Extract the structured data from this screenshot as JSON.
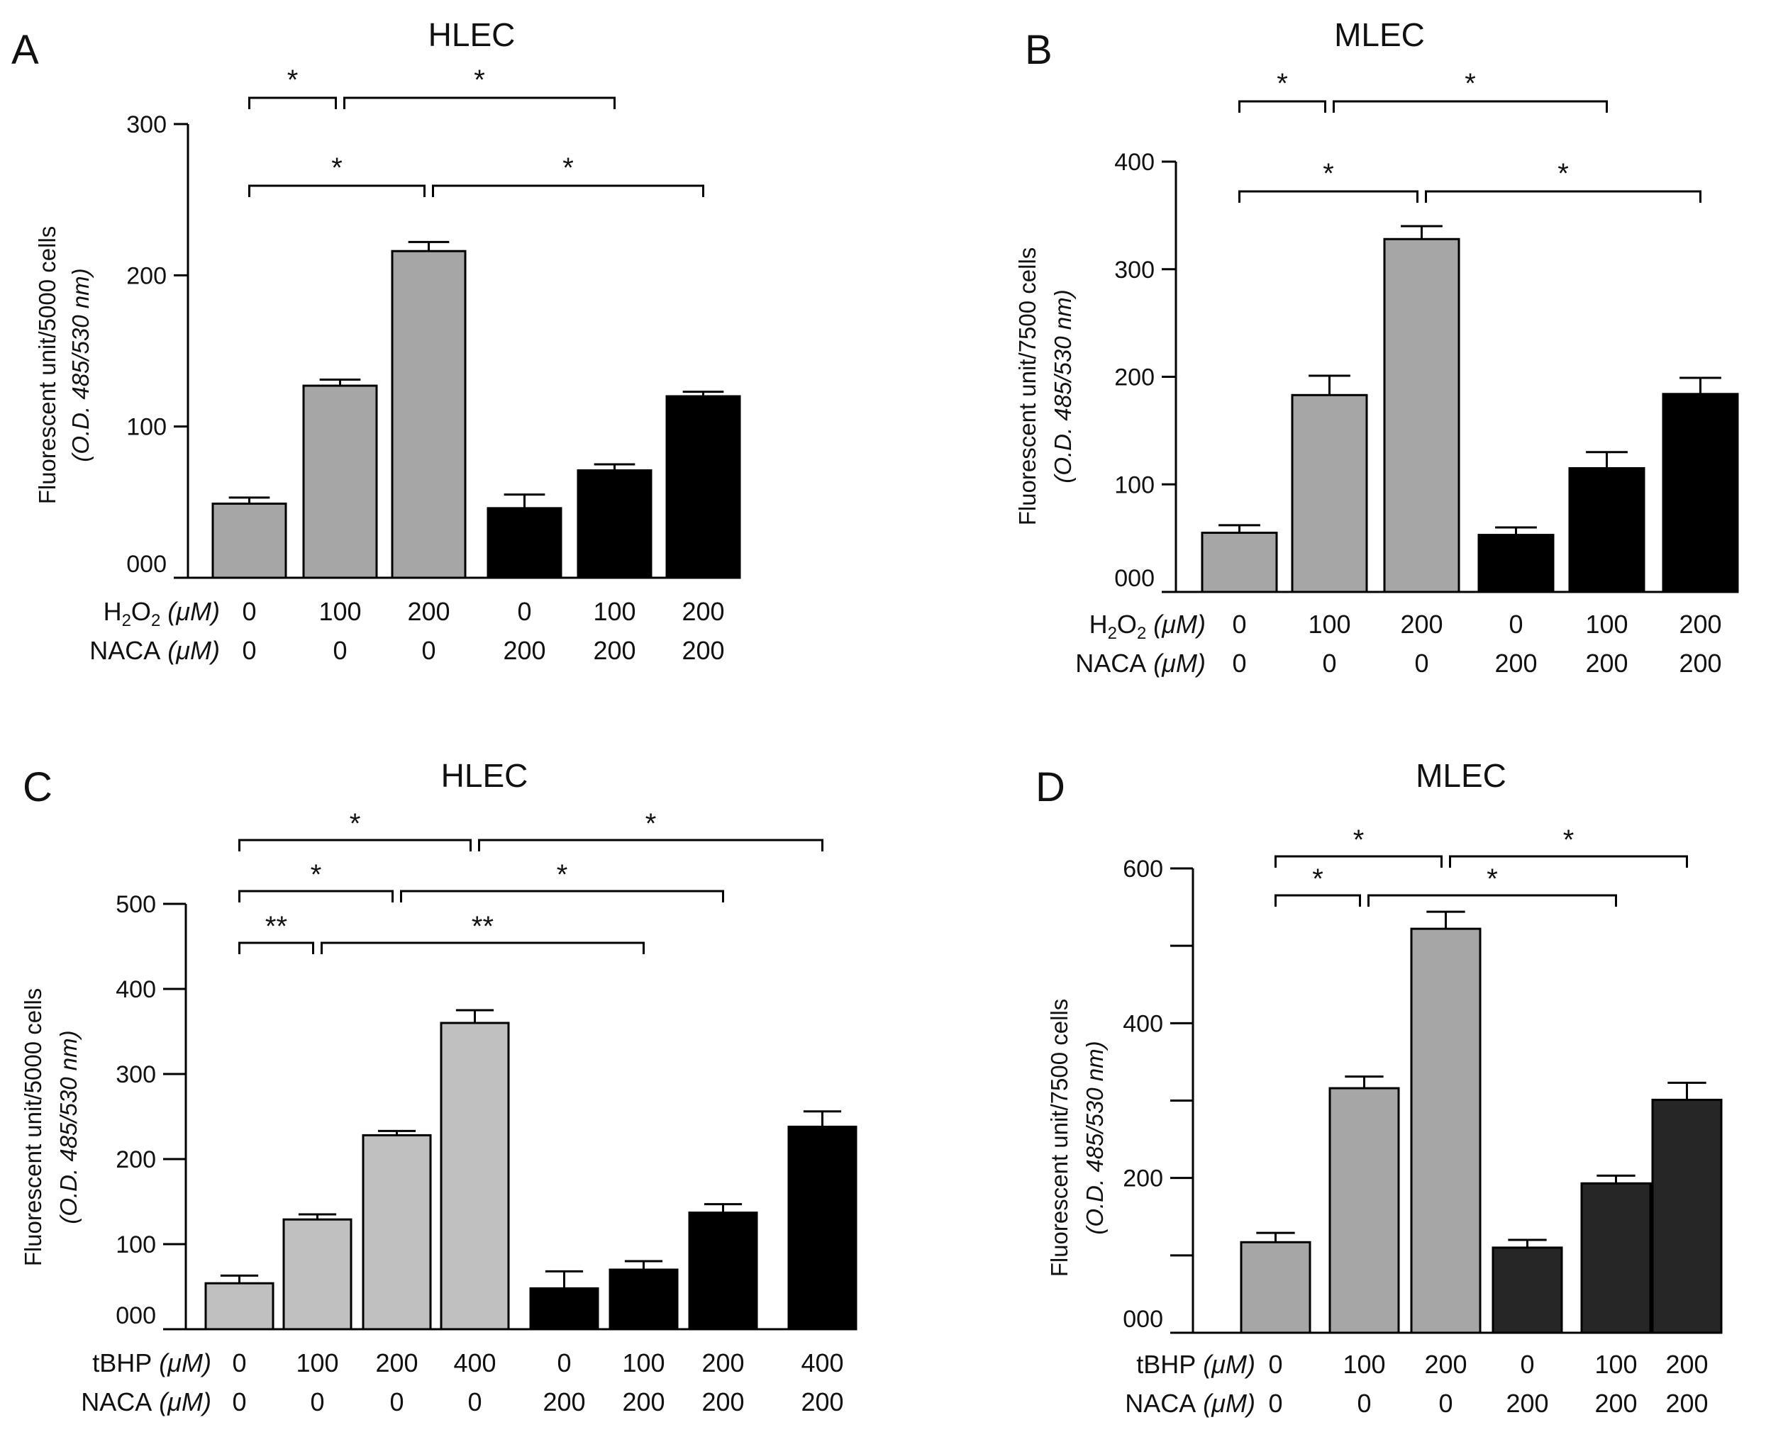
{
  "chart_data": [
    {
      "type": "bar",
      "panel_label": "A",
      "title": "HLEC",
      "ylabel": "Fluorescent unit/5000 cells",
      "ylabel_sub": "(O.D. 485/530 nm)",
      "ylim": [
        0,
        300
      ],
      "yticks": [
        0,
        100,
        200,
        300
      ],
      "ytick_labels": [
        "000",
        "100",
        "200",
        "300"
      ],
      "row_labels": [
        {
          "text": "H",
          "sub": "2",
          "text2": "O",
          "sub2": "2",
          "unit": " (μM)"
        },
        {
          "text": "NACA",
          "unit": " (μM)"
        }
      ],
      "categories_row1": [
        "0",
        "100",
        "200",
        "0",
        "100",
        "200"
      ],
      "categories_row2": [
        "0",
        "0",
        "0",
        "200",
        "200",
        "200"
      ],
      "values": [
        49,
        127,
        216,
        46,
        71,
        120
      ],
      "errors": [
        4,
        4,
        6,
        9,
        4,
        3
      ],
      "bar_colors": [
        "#a6a6a6",
        "#a6a6a6",
        "#a6a6a6",
        "#000000",
        "#000000",
        "#000000"
      ],
      "significance": [
        {
          "from": 0,
          "to": 1,
          "label": "*",
          "level": 1
        },
        {
          "from": 1,
          "to": 4,
          "label": "*",
          "level": 1
        },
        {
          "from": 0,
          "to": 2,
          "label": "*",
          "level": 2
        },
        {
          "from": 2,
          "to": 5,
          "label": "*",
          "level": 2
        }
      ]
    },
    {
      "type": "bar",
      "panel_label": "B",
      "title": "MLEC",
      "ylabel": "Fluorescent unit/7500 cells",
      "ylabel_sub": "(O.D. 485/530 nm)",
      "ylim": [
        0,
        400
      ],
      "yticks": [
        0,
        100,
        200,
        300,
        400
      ],
      "ytick_labels": [
        "000",
        "100",
        "200",
        "300",
        "400"
      ],
      "row_labels": [
        {
          "text": "H",
          "sub": "2",
          "text2": "O",
          "sub2": "2",
          "unit": " (μM)"
        },
        {
          "text": "NACA",
          "unit": " (μM)"
        }
      ],
      "categories_row1": [
        "0",
        "100",
        "200",
        "0",
        "100",
        "200"
      ],
      "categories_row2": [
        "0",
        "0",
        "0",
        "200",
        "200",
        "200"
      ],
      "values": [
        55,
        183,
        328,
        53,
        115,
        184
      ],
      "errors": [
        7,
        18,
        12,
        7,
        15,
        15
      ],
      "bar_colors": [
        "#a6a6a6",
        "#a6a6a6",
        "#a6a6a6",
        "#000000",
        "#000000",
        "#000000"
      ],
      "significance": [
        {
          "from": 0,
          "to": 1,
          "label": "*",
          "level": 1
        },
        {
          "from": 1,
          "to": 4,
          "label": "*",
          "level": 1
        },
        {
          "from": 0,
          "to": 2,
          "label": "*",
          "level": 2
        },
        {
          "from": 2,
          "to": 5,
          "label": "*",
          "level": 2
        }
      ]
    },
    {
      "type": "bar",
      "panel_label": "C",
      "title": "HLEC",
      "ylabel": "Fluorescent unit/5000 cells",
      "ylabel_sub": "(O.D. 485/530 nm)",
      "ylim": [
        0,
        500
      ],
      "yticks": [
        0,
        100,
        200,
        300,
        400,
        500
      ],
      "ytick_labels": [
        "000",
        "100",
        "200",
        "300",
        "400",
        "500"
      ],
      "row_labels": [
        {
          "text": "tBHP",
          "unit": " (μM)"
        },
        {
          "text": "NACA",
          "unit": " (μM)"
        }
      ],
      "categories_row1": [
        "0",
        "100",
        "200",
        "400",
        "0",
        "100",
        "200",
        "400"
      ],
      "categories_row2": [
        "0",
        "0",
        "0",
        "0",
        "200",
        "200",
        "200",
        "200"
      ],
      "values": [
        54,
        129,
        228,
        360,
        48,
        70,
        137,
        238
      ],
      "errors": [
        9,
        6,
        5,
        15,
        20,
        10,
        10,
        18
      ],
      "bar_colors": [
        "#c0c0c0",
        "#c0c0c0",
        "#c0c0c0",
        "#c0c0c0",
        "#000000",
        "#000000",
        "#000000",
        "#000000"
      ],
      "significance": [
        {
          "from": 0,
          "to": 1,
          "label": "**",
          "level": 1
        },
        {
          "from": 1,
          "to": 5,
          "label": "**",
          "level": 1
        },
        {
          "from": 0,
          "to": 2,
          "label": "*",
          "level": 2
        },
        {
          "from": 2,
          "to": 6,
          "label": "*",
          "level": 2
        },
        {
          "from": 0,
          "to": 3,
          "label": "*",
          "level": 3
        },
        {
          "from": 3,
          "to": 7,
          "label": "*",
          "level": 3
        }
      ]
    },
    {
      "type": "bar",
      "panel_label": "D",
      "title": "MLEC",
      "ylabel": "Fluorescent unit/7500 cells",
      "ylabel_sub": "(O.D. 485/530 nm)",
      "ylim": [
        0,
        600
      ],
      "yticks": [
        0,
        100,
        200,
        300,
        400,
        500,
        600
      ],
      "ytick_labels": [
        "000",
        "",
        "200",
        "",
        "400",
        "",
        "600"
      ],
      "row_labels": [
        {
          "text": "tBHP",
          "unit": " (μM)"
        },
        {
          "text": "NACA",
          "unit": " (μM)"
        }
      ],
      "categories_row1": [
        "0",
        "100",
        "200",
        "0",
        "100",
        "200"
      ],
      "categories_row2": [
        "0",
        "0",
        "0",
        "200",
        "200",
        "200"
      ],
      "values": [
        117,
        316,
        522,
        110,
        193,
        301
      ],
      "errors": [
        12,
        15,
        22,
        10,
        10,
        22
      ],
      "bar_colors": [
        "#a6a6a6",
        "#a6a6a6",
        "#a6a6a6",
        "#262626",
        "#262626",
        "#262626"
      ],
      "significance": [
        {
          "from": 0,
          "to": 1,
          "label": "*",
          "level": 1
        },
        {
          "from": 1,
          "to": 4,
          "label": "*",
          "level": 1
        },
        {
          "from": 0,
          "to": 2,
          "label": "*",
          "level": 2
        },
        {
          "from": 2,
          "to": 5,
          "label": "*",
          "level": 2
        }
      ]
    }
  ]
}
